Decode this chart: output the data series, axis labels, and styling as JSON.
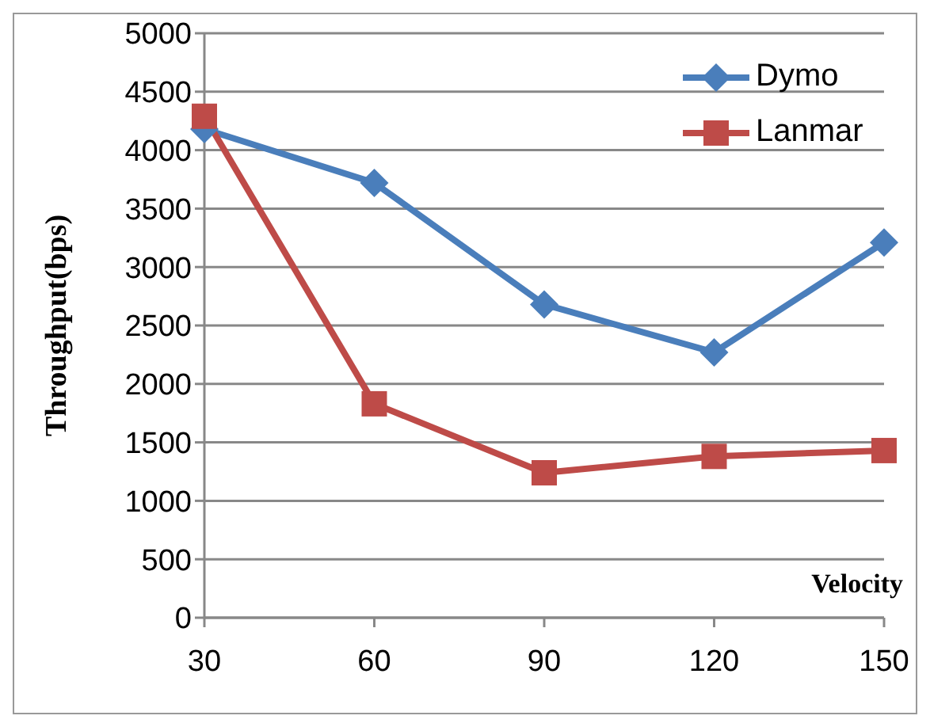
{
  "chart_data": {
    "type": "line",
    "xlabel": "Velocity",
    "ylabel": "Throughput(bps)",
    "categories": [
      "30",
      "60",
      "90",
      "120",
      "150"
    ],
    "series": [
      {
        "name": "Dymo",
        "color": "#4a7ebb",
        "marker": "diamond",
        "values": [
          4180,
          3720,
          2680,
          2270,
          3210
        ]
      },
      {
        "name": "Lanmar",
        "color": "#be4b48",
        "marker": "square",
        "values": [
          4290,
          1830,
          1240,
          1380,
          1430
        ]
      }
    ],
    "ylim": [
      0,
      5000
    ],
    "yticks": [
      0,
      500,
      1000,
      1500,
      2000,
      2500,
      3000,
      3500,
      4000,
      4500,
      5000
    ],
    "grid": "y",
    "legend": "top right"
  }
}
